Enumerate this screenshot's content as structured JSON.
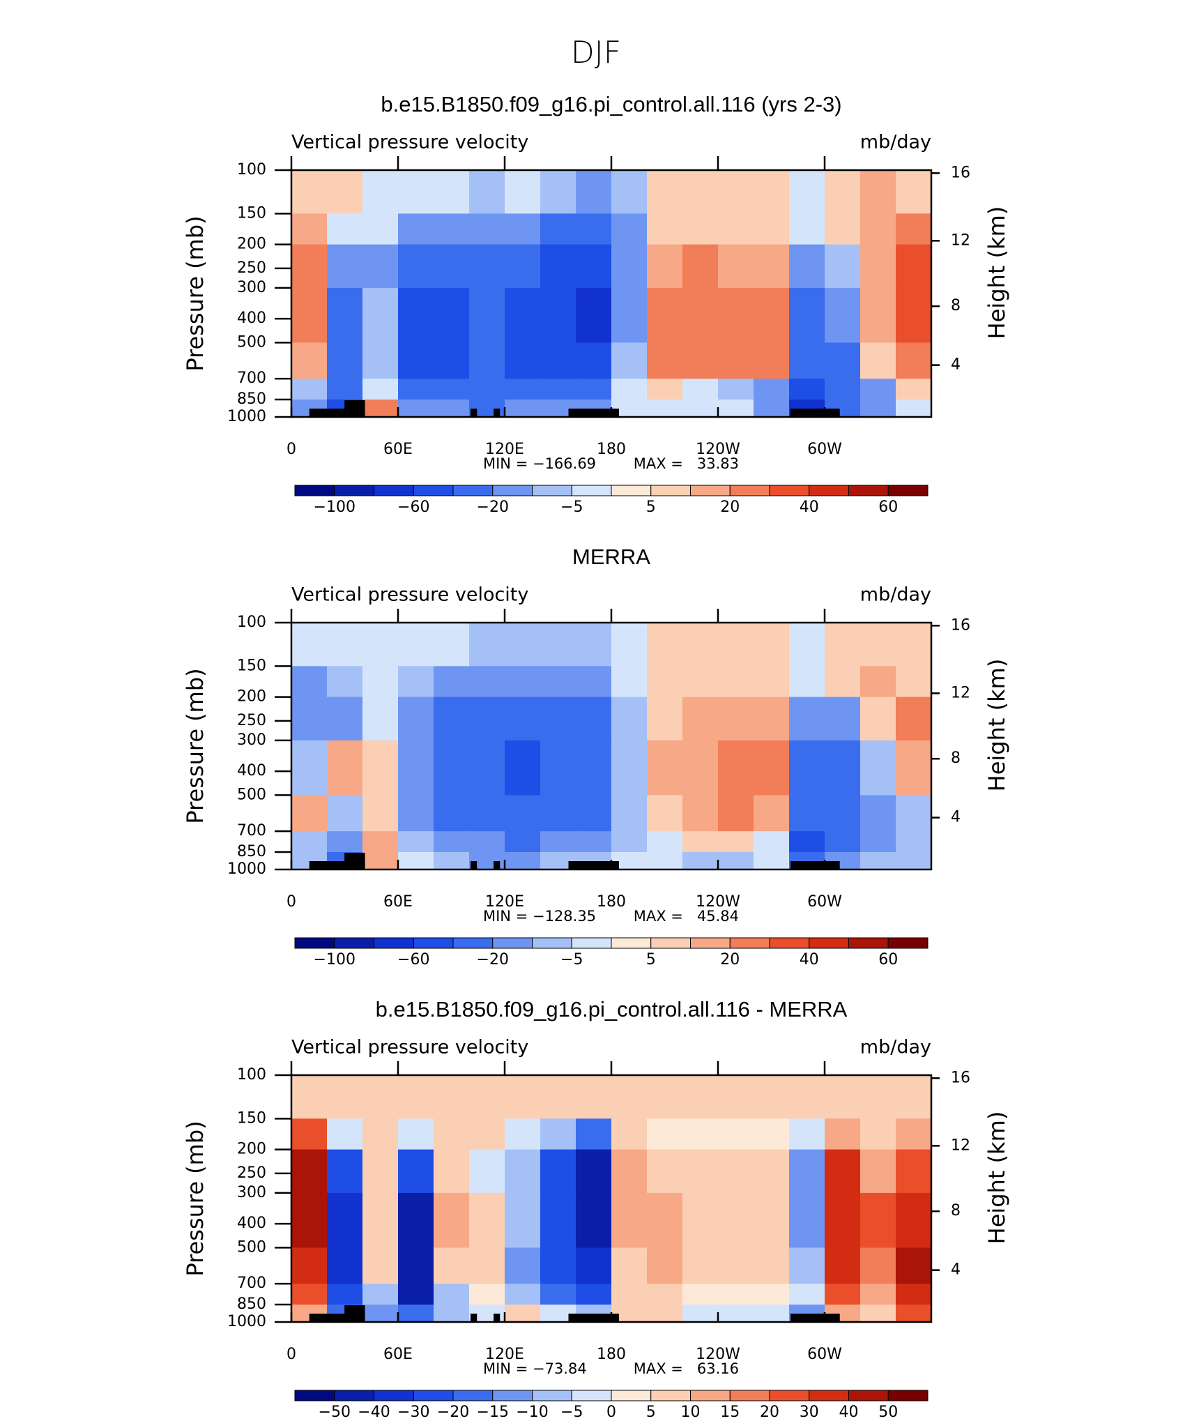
{
  "title": "DJF",
  "chart_data": [
    {
      "type": "contour",
      "title": "b.e15.B1850.f09_g16.pi_control.all.116 (yrs 2-3)",
      "left_label": "Vertical pressure velocity",
      "right_label": "mb/day",
      "ylabel": "Pressure (mb)",
      "y2label": "Height (km)",
      "xlim": [
        0,
        360
      ],
      "xticks": [
        0,
        {
          "value": 60,
          "label": "60E"
        },
        {
          "value": 120,
          "label": "120E"
        },
        180,
        {
          "value": 240,
          "label": "120W"
        },
        {
          "value": 300,
          "label": "60W"
        }
      ],
      "ylim": [
        1000,
        100
      ],
      "log_scale": true,
      "yticks": [
        100,
        150,
        200,
        250,
        300,
        400,
        500,
        700,
        850,
        1000
      ],
      "y2ticks": [
        4,
        8,
        12,
        16
      ],
      "stats": [
        {
          "value": -166.69,
          "label": "MIN = −166.69"
        },
        {
          "value": 33.83,
          "label": "MAX =   33.83"
        }
      ],
      "levels": [
        -100,
        -80,
        -60,
        -40,
        -20,
        -10,
        -5,
        0,
        5,
        10,
        20,
        30,
        40,
        50,
        60
      ],
      "colorbar_ticks": [
        {
          "value": -100,
          "label": "−100"
        },
        {
          "value": -60,
          "label": "−60"
        },
        {
          "value": -20,
          "label": "−20"
        },
        {
          "value": -5,
          "label": "−5"
        },
        5,
        20,
        40,
        60
      ],
      "colors": [
        "#000a80",
        "#0a1ea8",
        "#1232cf",
        "#1e4ee6",
        "#3a6cee",
        "#6f95f2",
        "#a5c0f6",
        "#d4e5fb",
        "#fde9d8",
        "#fbcfb3",
        "#f7a887",
        "#f17d59",
        "#ea4f2c",
        "#d22d13",
        "#ab1408",
        "#780000"
      ],
      "x_edges": [
        0,
        20,
        40,
        60,
        80,
        100,
        120,
        140,
        160,
        180,
        200,
        220,
        240,
        260,
        280,
        300,
        320,
        340,
        360
      ],
      "y_edges": [
        100,
        150,
        200,
        300,
        500,
        700,
        850,
        1000
      ],
      "values": [
        [
          5,
          5,
          -5,
          -5,
          -5,
          -10,
          -5,
          -10,
          -20,
          -10,
          5,
          5,
          5,
          5,
          -5,
          5,
          10,
          5
        ],
        [
          10,
          -5,
          -5,
          -20,
          -20,
          -20,
          -20,
          -40,
          -40,
          -20,
          5,
          5,
          5,
          5,
          -5,
          5,
          10,
          20
        ],
        [
          20,
          -20,
          -20,
          -40,
          -40,
          -40,
          -40,
          -60,
          -60,
          -20,
          10,
          20,
          10,
          10,
          -20,
          -10,
          10,
          30
        ],
        [
          20,
          -40,
          -10,
          -60,
          -60,
          -40,
          -60,
          -60,
          -80,
          -20,
          20,
          20,
          20,
          20,
          -40,
          -20,
          10,
          30
        ],
        [
          10,
          -40,
          -10,
          -60,
          -60,
          -40,
          -60,
          -60,
          -60,
          -10,
          20,
          20,
          20,
          20,
          -40,
          -40,
          5,
          20
        ],
        [
          -10,
          -40,
          -5,
          -40,
          -40,
          -40,
          -40,
          -40,
          -40,
          -5,
          5,
          -5,
          -10,
          -20,
          -60,
          -40,
          -20,
          5
        ],
        [
          -20,
          -60,
          20,
          -20,
          -20,
          -40,
          -20,
          -20,
          -20,
          -5,
          -5,
          -5,
          -5,
          -20,
          -80,
          -40,
          -20,
          -5
        ]
      ]
    },
    {
      "type": "contour",
      "title": "MERRA",
      "left_label": "Vertical pressure velocity",
      "right_label": "mb/day",
      "ylabel": "Pressure (mb)",
      "y2label": "Height (km)",
      "xlim": [
        0,
        360
      ],
      "xticks": [
        0,
        {
          "value": 60,
          "label": "60E"
        },
        {
          "value": 120,
          "label": "120E"
        },
        180,
        {
          "value": 240,
          "label": "120W"
        },
        {
          "value": 300,
          "label": "60W"
        }
      ],
      "ylim": [
        1000,
        100
      ],
      "log_scale": true,
      "yticks": [
        100,
        150,
        200,
        250,
        300,
        400,
        500,
        700,
        850,
        1000
      ],
      "y2ticks": [
        4,
        8,
        12,
        16
      ],
      "stats": [
        {
          "value": -128.35,
          "label": "MIN = −128.35"
        },
        {
          "value": 45.84,
          "label": "MAX =   45.84"
        }
      ],
      "levels": [
        -100,
        -80,
        -60,
        -40,
        -20,
        -10,
        -5,
        0,
        5,
        10,
        20,
        30,
        40,
        50,
        60
      ],
      "colorbar_ticks": [
        {
          "value": -100,
          "label": "−100"
        },
        {
          "value": -60,
          "label": "−60"
        },
        {
          "value": -20,
          "label": "−20"
        },
        {
          "value": -5,
          "label": "−5"
        },
        5,
        20,
        40,
        60
      ],
      "colors": [
        "#000a80",
        "#0a1ea8",
        "#1232cf",
        "#1e4ee6",
        "#3a6cee",
        "#6f95f2",
        "#a5c0f6",
        "#d4e5fb",
        "#fde9d8",
        "#fbcfb3",
        "#f7a887",
        "#f17d59",
        "#ea4f2c",
        "#d22d13",
        "#ab1408",
        "#780000"
      ],
      "x_edges": [
        0,
        20,
        40,
        60,
        80,
        100,
        120,
        140,
        160,
        180,
        200,
        220,
        240,
        260,
        280,
        300,
        320,
        340,
        360
      ],
      "y_edges": [
        100,
        150,
        200,
        300,
        500,
        700,
        850,
        1000
      ],
      "values": [
        [
          -5,
          -5,
          -5,
          -5,
          -5,
          -10,
          -10,
          -10,
          -10,
          -5,
          5,
          5,
          5,
          5,
          -5,
          5,
          5,
          5
        ],
        [
          -20,
          -10,
          -5,
          -10,
          -20,
          -20,
          -20,
          -20,
          -20,
          -5,
          5,
          5,
          5,
          5,
          -5,
          5,
          10,
          5
        ],
        [
          -20,
          -20,
          -5,
          -20,
          -40,
          -40,
          -40,
          -40,
          -40,
          -10,
          5,
          10,
          10,
          10,
          -20,
          -20,
          5,
          20
        ],
        [
          -10,
          10,
          5,
          -20,
          -40,
          -40,
          -60,
          -40,
          -40,
          -10,
          10,
          10,
          20,
          20,
          -40,
          -40,
          -10,
          10
        ],
        [
          10,
          -10,
          5,
          -20,
          -40,
          -40,
          -40,
          -40,
          -40,
          -10,
          5,
          10,
          20,
          10,
          -40,
          -40,
          -20,
          -10
        ],
        [
          -10,
          -20,
          10,
          -10,
          -20,
          -20,
          -40,
          -20,
          -20,
          -10,
          -5,
          5,
          5,
          -5,
          -60,
          -40,
          -20,
          -10
        ],
        [
          -10,
          -40,
          10,
          -5,
          -10,
          -20,
          -20,
          -10,
          -10,
          -5,
          -5,
          -10,
          -10,
          -5,
          -40,
          -20,
          -10,
          -10
        ]
      ]
    },
    {
      "type": "contour",
      "title": "b.e15.B1850.f09_g16.pi_control.all.116 - MERRA",
      "left_label": "Vertical pressure velocity",
      "right_label": "mb/day",
      "ylabel": "Pressure (mb)",
      "y2label": "Height (km)",
      "xlim": [
        0,
        360
      ],
      "xticks": [
        0,
        {
          "value": 60,
          "label": "60E"
        },
        {
          "value": 120,
          "label": "120E"
        },
        180,
        {
          "value": 240,
          "label": "120W"
        },
        {
          "value": 300,
          "label": "60W"
        }
      ],
      "ylim": [
        1000,
        100
      ],
      "log_scale": true,
      "yticks": [
        100,
        150,
        200,
        250,
        300,
        400,
        500,
        700,
        850,
        1000
      ],
      "y2ticks": [
        4,
        8,
        12,
        16
      ],
      "stats": [
        {
          "value": -73.84,
          "label": "MIN = −73.84"
        },
        {
          "value": 63.16,
          "label": "MAX =   63.16"
        }
      ],
      "levels": [
        -50,
        -40,
        -30,
        -20,
        -15,
        -10,
        -5,
        0,
        5,
        10,
        15,
        20,
        30,
        40,
        50
      ],
      "colorbar_ticks": [
        {
          "value": -50,
          "label": "−50"
        },
        {
          "value": -40,
          "label": "−40"
        },
        {
          "value": -30,
          "label": "−30"
        },
        {
          "value": -20,
          "label": "−20"
        },
        {
          "value": -15,
          "label": "−15"
        },
        {
          "value": -10,
          "label": "−10"
        },
        {
          "value": -5,
          "label": "−5"
        },
        0,
        5,
        10,
        15,
        20,
        30,
        40,
        50
      ],
      "colors": [
        "#000a80",
        "#0a1ea8",
        "#1232cf",
        "#1e4ee6",
        "#3a6cee",
        "#6f95f2",
        "#a5c0f6",
        "#d4e5fb",
        "#fde9d8",
        "#fbcfb3",
        "#f7a887",
        "#f17d59",
        "#ea4f2c",
        "#d22d13",
        "#ab1408",
        "#780000"
      ],
      "x_edges": [
        0,
        20,
        40,
        60,
        80,
        100,
        120,
        140,
        160,
        180,
        200,
        220,
        240,
        260,
        280,
        300,
        320,
        340,
        360
      ],
      "y_edges": [
        100,
        150,
        200,
        300,
        500,
        700,
        850,
        1000
      ],
      "values": [
        [
          5,
          5,
          5,
          5,
          5,
          5,
          5,
          5,
          5,
          5,
          5,
          5,
          5,
          5,
          5,
          5,
          5,
          5
        ],
        [
          20,
          -5,
          5,
          -5,
          5,
          5,
          -5,
          -10,
          -20,
          5,
          0,
          0,
          0,
          0,
          -5,
          10,
          5,
          10
        ],
        [
          40,
          -30,
          5,
          -30,
          5,
          -5,
          -10,
          -30,
          -50,
          10,
          5,
          5,
          5,
          5,
          -15,
          30,
          10,
          20
        ],
        [
          40,
          -40,
          5,
          -50,
          10,
          5,
          -10,
          -30,
          -50,
          10,
          10,
          5,
          5,
          5,
          -15,
          30,
          20,
          30
        ],
        [
          30,
          -40,
          5,
          -50,
          5,
          5,
          -15,
          -30,
          -40,
          5,
          10,
          5,
          5,
          5,
          -10,
          30,
          15,
          40
        ],
        [
          20,
          -30,
          -10,
          -50,
          -10,
          0,
          -10,
          -20,
          -30,
          5,
          5,
          0,
          0,
          0,
          -5,
          20,
          10,
          30
        ],
        [
          10,
          -20,
          -15,
          -20,
          -10,
          -5,
          5,
          -5,
          -10,
          5,
          5,
          -5,
          -5,
          -5,
          -15,
          10,
          5,
          20
        ]
      ]
    }
  ]
}
